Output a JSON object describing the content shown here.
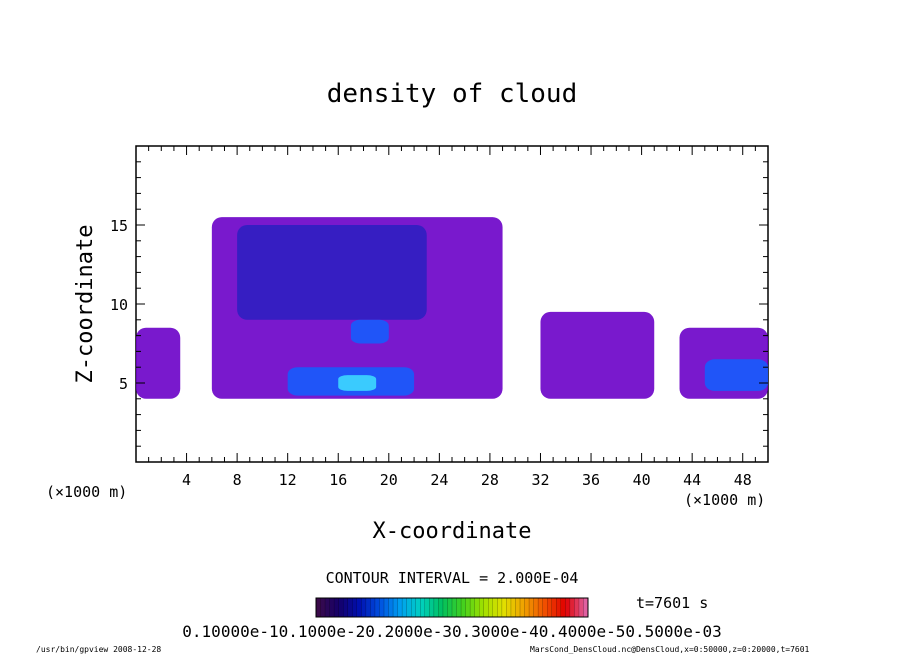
{
  "chart_data": {
    "type": "heatmap",
    "title": "density of cloud",
    "xlabel": "X-coordinate",
    "ylabel": "Z-coordinate",
    "x_unit": "(×1000 m)",
    "y_unit": "(×1000 m)",
    "xlim": [
      0,
      50
    ],
    "ylim": [
      0,
      20
    ],
    "x_ticks": [
      "4",
      "8",
      "12",
      "16",
      "20",
      "24",
      "28",
      "32",
      "36",
      "40",
      "44",
      "48"
    ],
    "y_ticks": [
      "5",
      "10",
      "15"
    ],
    "contour_interval": "CONTOUR INTERVAL = 2.000E-04",
    "time_label": "t=7601 s",
    "colorbar_labels": [
      "0.1000e-10",
      "0.1000e-03",
      "0.2000e-03",
      "0.3000e-03",
      "0.4000e-03",
      "0.5000e-03"
    ],
    "colorbar_label_text": "0.10000e-10.1000e-20.2000e-30.3000e-40.4000e-50.5000e-03",
    "colorbar_colors": [
      "#3a0a4a",
      "#14006a",
      "#0010b0",
      "#0050e0",
      "#00a0f0",
      "#00d0c0",
      "#00c060",
      "#40d020",
      "#a0e000",
      "#e0e000",
      "#f0a000",
      "#f05000",
      "#e00000",
      "#e060a0"
    ],
    "cloud_colors": {
      "low": "#6a00c8",
      "mid": "#2a20c0",
      "high": "#1060ff",
      "peak": "#40e0ff"
    },
    "cloud_regions": [
      {
        "x": [
          0,
          3.5
        ],
        "z": [
          4,
          8.5
        ],
        "level": "low"
      },
      {
        "x": [
          6,
          29
        ],
        "z": [
          4,
          15.5
        ],
        "level": "low"
      },
      {
        "x": [
          32,
          41
        ],
        "z": [
          4,
          9.5
        ],
        "level": "low"
      },
      {
        "x": [
          43,
          50
        ],
        "z": [
          4,
          8.5
        ],
        "level": "low"
      },
      {
        "x": [
          8,
          23
        ],
        "z": [
          9,
          15
        ],
        "level": "mid"
      },
      {
        "x": [
          12,
          22
        ],
        "z": [
          4.2,
          6
        ],
        "level": "high"
      },
      {
        "x": [
          17,
          20
        ],
        "z": [
          7.5,
          9
        ],
        "level": "high"
      },
      {
        "x": [
          45,
          50
        ],
        "z": [
          4.5,
          6.5
        ],
        "level": "high"
      },
      {
        "x": [
          16,
          19
        ],
        "z": [
          4.5,
          5.5
        ],
        "level": "peak"
      }
    ],
    "grid": false,
    "legend": "bottom-center"
  },
  "footer": {
    "left": "/usr/bin/gpview   2008-12-28",
    "right": "MarsCond_DensCloud.nc@DensCloud,x=0:50000,z=0:20000,t=7601"
  }
}
